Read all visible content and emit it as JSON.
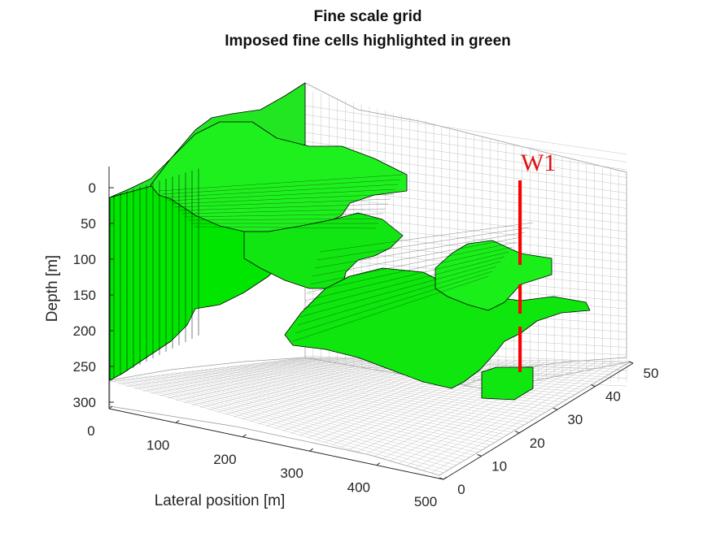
{
  "chart_data": {
    "type": "surface3d",
    "title": "Fine scale grid",
    "subtitle": "Imposed fine cells highlighted in green",
    "zlabel": "Depth [m]",
    "xlabel": "Lateral position [m]",
    "ylabel": "",
    "depth_ticks": [
      "0",
      "50",
      "100",
      "150",
      "200",
      "250",
      "300"
    ],
    "depth_tick_values": [
      0,
      50,
      100,
      150,
      200,
      250,
      300
    ],
    "lateral_ticks": [
      "0",
      "100",
      "200",
      "300",
      "400",
      "500"
    ],
    "lateral_tick_values": [
      0,
      100,
      200,
      300,
      400,
      500
    ],
    "y_ticks": [
      "0",
      "10",
      "20",
      "30",
      "40",
      "50"
    ],
    "y_tick_values": [
      0,
      10,
      20,
      30,
      40,
      50
    ],
    "zlim": [
      0,
      300
    ],
    "xlim": [
      0,
      500
    ],
    "ylim": [
      0,
      50
    ],
    "grid_color": "#8c8c8c",
    "highlight_color": "#00ff00",
    "well": {
      "name": "W1",
      "color": "#ff0000"
    }
  }
}
